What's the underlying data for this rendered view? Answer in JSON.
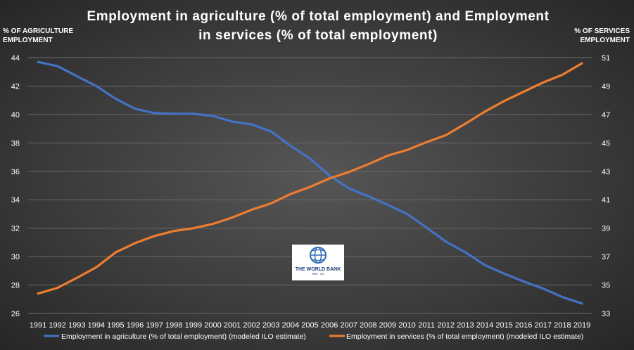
{
  "chart_data": {
    "type": "line",
    "title_lines": [
      "Employment in agriculture (% of total employment) and  Employment",
      "in services (% of total employment)"
    ],
    "left_axis_title": [
      "% OF AGRICULTURE",
      "EMPLOYMENT"
    ],
    "right_axis_title": [
      "% OF SERVICES",
      "EMPLOYMENT"
    ],
    "categories": [
      "1991",
      "1992",
      "1993",
      "1994",
      "1995",
      "1996",
      "1997",
      "1998",
      "1999",
      "2000",
      "2001",
      "2002",
      "2003",
      "2004",
      "2005",
      "2006",
      "2007",
      "2008",
      "2009",
      "2010",
      "2011",
      "2012",
      "2013",
      "2014",
      "2015",
      "2016",
      "2017",
      "2018",
      "2019"
    ],
    "y_left": {
      "min": 26,
      "max": 44,
      "ticks": [
        26,
        28,
        30,
        32,
        34,
        36,
        38,
        40,
        42,
        44
      ]
    },
    "y_right": {
      "min": 33,
      "max": 51,
      "ticks": [
        33,
        35,
        37,
        39,
        41,
        43,
        45,
        47,
        49,
        51
      ]
    },
    "grid": true,
    "legend_position": "bottom",
    "series": [
      {
        "name": "Employment in agriculture (% of total employment) (modeled ILO estimate)",
        "axis": "left",
        "color": "#4472c4",
        "values": [
          43.7,
          43.4,
          42.7,
          42.0,
          41.1,
          40.4,
          40.1,
          40.05,
          40.05,
          39.9,
          39.5,
          39.3,
          38.8,
          37.8,
          36.9,
          35.7,
          34.8,
          34.25,
          33.65,
          33.0,
          32.05,
          31.05,
          30.3,
          29.4,
          28.8,
          28.25,
          27.75,
          27.15,
          26.7
        ]
      },
      {
        "name": "Employment in services (% of total employment) (modeled ILO estimate)",
        "axis": "right",
        "color": "#ed7d31",
        "values": [
          34.4,
          34.8,
          35.5,
          36.25,
          37.3,
          37.95,
          38.45,
          38.8,
          39.0,
          39.3,
          39.75,
          40.3,
          40.75,
          41.4,
          41.9,
          42.5,
          42.95,
          43.5,
          44.1,
          44.5,
          45.05,
          45.55,
          46.35,
          47.2,
          47.95,
          48.6,
          49.25,
          49.8,
          50.6
        ]
      }
    ]
  },
  "logo": {
    "name": "THE WORLD BANK",
    "subtitle": "IBRD · IDA"
  }
}
